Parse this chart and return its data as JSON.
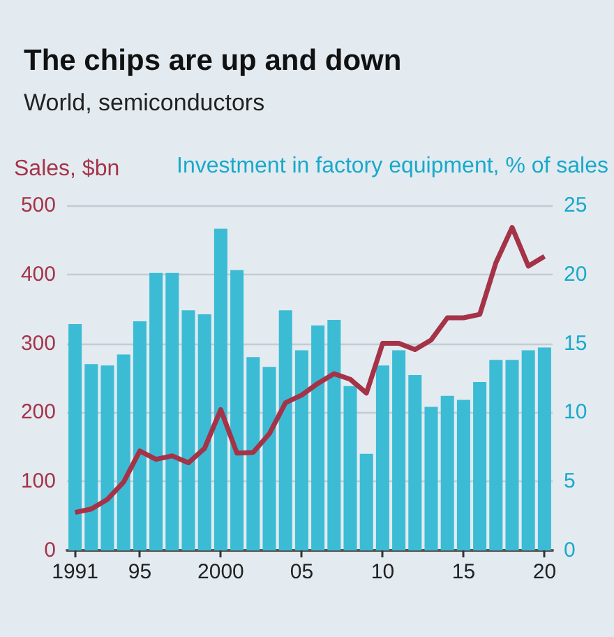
{
  "chart_data": {
    "type": "bar",
    "title": "The chips are up and down",
    "subtitle": "World, semiconductors",
    "ylabel": "Sales, $bn",
    "y2label": "Investment in factory equipment, % of sales",
    "categories": [
      "1991",
      null,
      null,
      null,
      "95",
      null,
      null,
      null,
      null,
      "2000",
      null,
      null,
      null,
      null,
      "05",
      null,
      null,
      null,
      null,
      "10",
      null,
      null,
      null,
      null,
      "15",
      null,
      null,
      null,
      null,
      "20"
    ],
    "series": [
      {
        "axis": "y2",
        "color": "#3bbcd4",
        "values": [
          16.4,
          13.5,
          13.4,
          14.2,
          16.6,
          20.1,
          20.1,
          17.4,
          17.1,
          23.3,
          20.3,
          14.0,
          13.3,
          17.4,
          14.5,
          16.3,
          16.7,
          11.9,
          7.0,
          13.4,
          14.5,
          12.7,
          10.4,
          11.2,
          10.9,
          12.2,
          13.8,
          13.8,
          14.5,
          14.7
        ]
      },
      {
        "type": "line",
        "axis": "y",
        "color": "#a53348",
        "values": [
          55,
          60,
          74,
          99,
          144,
          132,
          137,
          127,
          148,
          204,
          141,
          142,
          169,
          214,
          225,
          242,
          256,
          248,
          228,
          300,
          300,
          291,
          305,
          337,
          337,
          342,
          417,
          468,
          412,
          426
        ]
      }
    ],
    "ylim": [
      0,
      500
    ],
    "yticks": [
      0,
      100,
      200,
      300,
      400,
      500
    ],
    "y2lim": [
      0,
      25
    ],
    "y2ticks": [
      0,
      5,
      10,
      15,
      20,
      25
    ],
    "grid": "y",
    "marker": "none",
    "line_style": "solid"
  }
}
